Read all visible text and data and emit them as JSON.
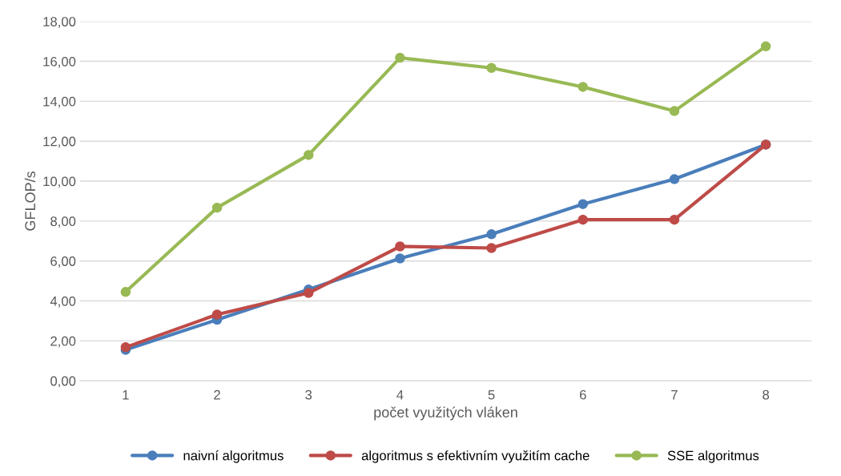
{
  "chart_data": {
    "type": "line",
    "xlabel": "počet využitých vláken",
    "ylabel": "GFLOP/s",
    "categories": [
      "1",
      "2",
      "3",
      "4",
      "5",
      "6",
      "7",
      "8"
    ],
    "series": [
      {
        "name": "naivní algoritmus",
        "color": "#4a7ebb",
        "values": [
          1.55,
          3.06,
          4.57,
          6.13,
          7.34,
          8.85,
          10.1,
          11.83
        ]
      },
      {
        "name": "algoritmus s efektivním využitím cache",
        "color": "#be4b48",
        "values": [
          1.68,
          3.32,
          4.4,
          6.73,
          6.65,
          8.07,
          8.07,
          11.83
        ]
      },
      {
        "name": "SSE algoritmus",
        "color": "#98b954",
        "values": [
          4.45,
          8.67,
          11.31,
          16.18,
          15.67,
          14.72,
          13.51,
          16.75
        ]
      }
    ],
    "ylim": [
      0,
      18
    ],
    "yticks": [
      {
        "value": 0,
        "label": "0,00"
      },
      {
        "value": 2,
        "label": "2,00"
      },
      {
        "value": 4,
        "label": "4,00"
      },
      {
        "value": 6,
        "label": "6,00"
      },
      {
        "value": 8,
        "label": "8,00"
      },
      {
        "value": 10,
        "label": "10,00"
      },
      {
        "value": 12,
        "label": "12,00"
      },
      {
        "value": 14,
        "label": "14,00"
      },
      {
        "value": 16,
        "label": "16,00"
      },
      {
        "value": 18,
        "label": "18,00"
      }
    ],
    "grid": "y",
    "legend": "bottom",
    "marker": "circle",
    "line_style": "solid"
  }
}
